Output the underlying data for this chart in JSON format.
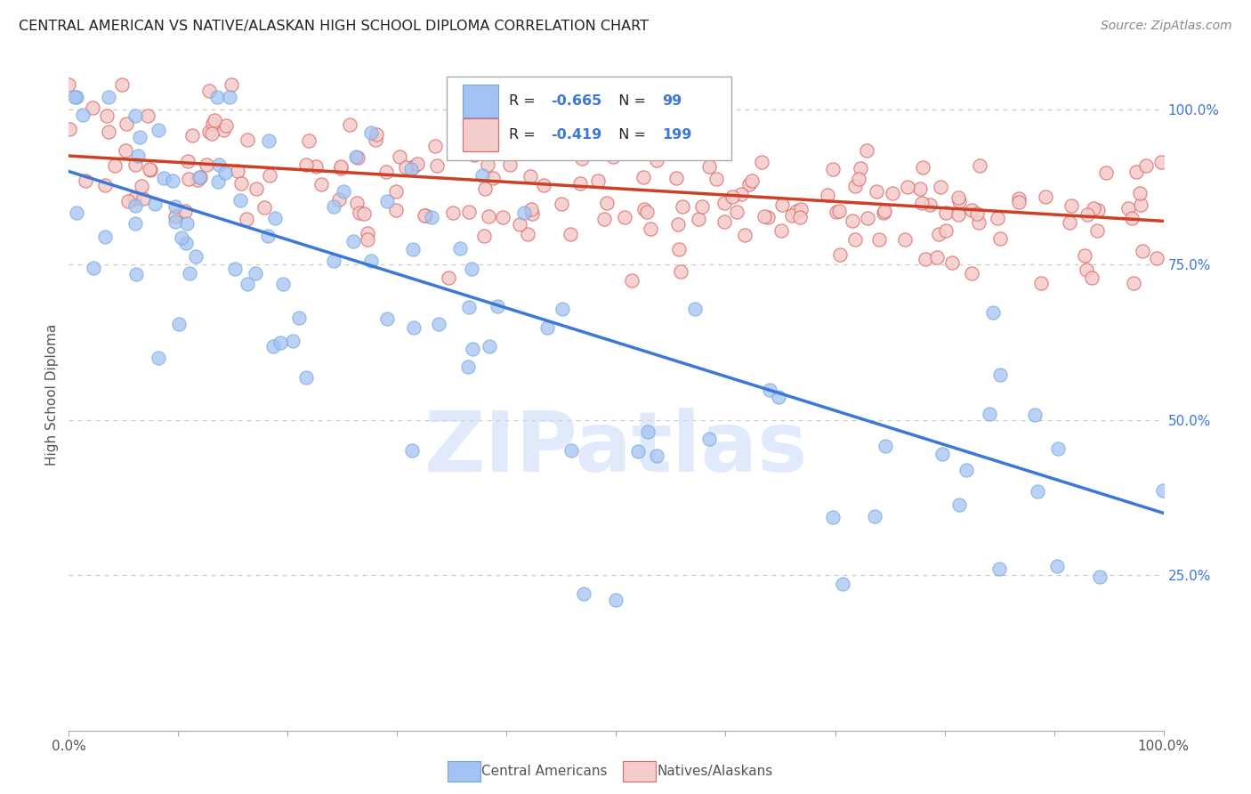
{
  "title": "CENTRAL AMERICAN VS NATIVE/ALASKAN HIGH SCHOOL DIPLOMA CORRELATION CHART",
  "source": "Source: ZipAtlas.com",
  "ylabel": "High School Diploma",
  "blue_R": -0.665,
  "blue_N": 99,
  "pink_R": -0.419,
  "pink_N": 199,
  "blue_color": "#a4c2f4",
  "blue_edge_color": "#6fa8dc",
  "pink_color": "#f4cccc",
  "pink_edge_color": "#e06666",
  "blue_line_color": "#3c78d8",
  "pink_line_color": "#cc4125",
  "legend_blue_label": "Central Americans",
  "legend_pink_label": "Natives/Alaskans",
  "watermark": "ZIPatlas",
  "xlim": [
    0,
    1
  ],
  "ylim": [
    0,
    1
  ],
  "right_yticks": [
    0.25,
    0.5,
    0.75,
    1.0
  ],
  "right_yticklabels": [
    "25.0%",
    "50.0%",
    "75.0%",
    "100.0%"
  ],
  "blue_line_x0": 0.0,
  "blue_line_y0": 0.9,
  "blue_line_x1": 1.0,
  "blue_line_y1": 0.35,
  "pink_line_x0": 0.0,
  "pink_line_y0": 0.925,
  "pink_line_x1": 1.0,
  "pink_line_y1": 0.82,
  "background_color": "#ffffff",
  "grid_color": "#cccccc",
  "right_tick_color": "#3c78d8",
  "label_color": "#555555"
}
